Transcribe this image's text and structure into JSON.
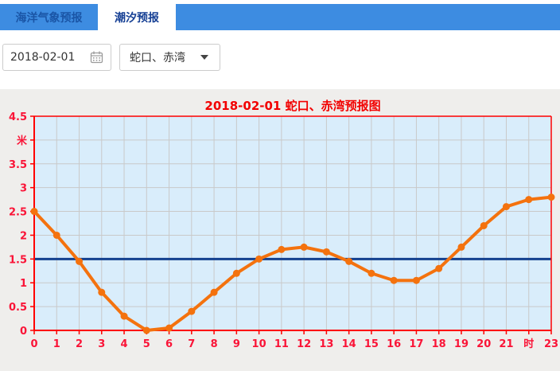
{
  "header": {
    "tabs": [
      {
        "label": "海洋气象预报",
        "active": false
      },
      {
        "label": "潮汐预报",
        "active": true
      }
    ]
  },
  "controls": {
    "date_value": "2018-02-01",
    "station_value": "蛇口、赤湾"
  },
  "chart_data": {
    "type": "line",
    "title": "2018-02-01 蛇口、赤湾预报图",
    "x": [
      0,
      1,
      2,
      3,
      4,
      5,
      6,
      7,
      8,
      9,
      10,
      11,
      12,
      13,
      14,
      15,
      16,
      17,
      18,
      19,
      20,
      21,
      22,
      23
    ],
    "values": [
      2.5,
      2.0,
      1.45,
      0.8,
      0.3,
      0.0,
      0.05,
      0.4,
      0.8,
      1.2,
      1.5,
      1.7,
      1.75,
      1.65,
      1.45,
      1.2,
      1.05,
      1.05,
      1.3,
      1.75,
      2.2,
      2.6,
      2.75,
      2.8
    ],
    "x_tick_labels": [
      "0",
      "1",
      "2",
      "3",
      "4",
      "5",
      "6",
      "7",
      "8",
      "9",
      "10",
      "11",
      "12",
      "13",
      "14",
      "15",
      "16",
      "17",
      "18",
      "19",
      "20",
      "21",
      "时",
      "23"
    ],
    "y_ticks": [
      0,
      0.5,
      1,
      1.5,
      2,
      2.5,
      3,
      3.5,
      4,
      4.5
    ],
    "y_tick_labels": [
      "0",
      "0.5",
      "1",
      "1.5",
      "2",
      "2.5",
      "3",
      "3.5",
      "米",
      "4.5"
    ],
    "xlim": [
      0,
      23
    ],
    "ylim": [
      0,
      4.5
    ],
    "x_unit_label": "时",
    "y_unit_label": "米",
    "reference_line_y": 1.5,
    "grid": true,
    "legend_position": "none",
    "colors": {
      "line": "#f4720e",
      "reference_line": "#14418f",
      "axis": "#ff0000",
      "tick_label": "#fa1437",
      "title": "#f20000",
      "plot_bg": "#d9edfb",
      "chart_bg": "#efeeec",
      "gridline": "#c9c9c9"
    }
  },
  "colors": {
    "tab_bar": "#3d8ce1",
    "tab_text": "#1a55a6",
    "active_tab_text": "#153f94",
    "active_tab_bg": "#ffffff"
  }
}
